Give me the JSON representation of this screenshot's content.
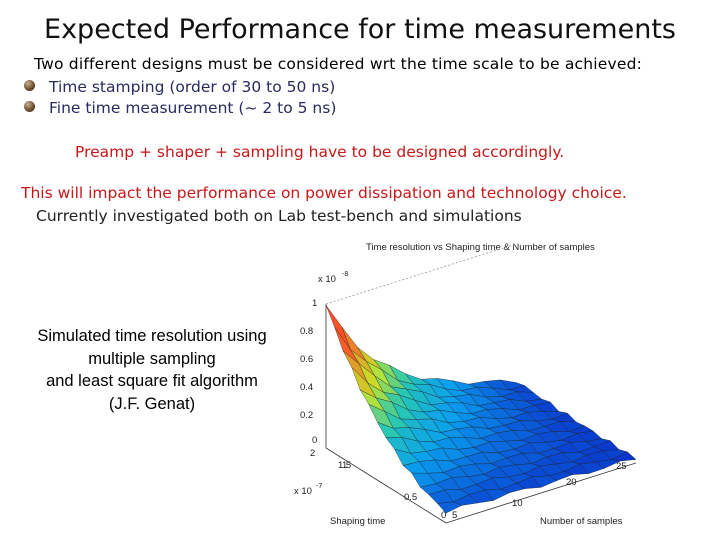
{
  "slide": {
    "title": "Expected Performance for time measurements",
    "intro": "Two different designs must be considered wrt the time scale to be achieved:",
    "bullets": [
      "Time stamping (order of 30 to 50 ns)",
      "Fine time measurement (~ 2 to 5 ns)"
    ],
    "note": "Preamp + shaper + sampling have to be designed accordingly.",
    "impact": "This will impact the performance on power dissipation and technology choice.",
    "currently": "Currently investigated both on Lab test-bench and simulations",
    "sim_caption": [
      "Simulated time resolution using",
      "multiple sampling",
      "and least square fit algorithm",
      "(J.F. Genat)"
    ]
  },
  "plot": {
    "title": "Time resolution vs Shaping time & Number of samples",
    "z_multiplier": "x 10",
    "z_exponent": "-8",
    "z_ticks": [
      "1",
      "0.8",
      "0.6",
      "0.4",
      "0.2",
      "0"
    ],
    "shaping_multiplier": "x 10",
    "shaping_exponent": "-7",
    "shaping_ticks": [
      "2",
      "1.5",
      "1",
      "0.5",
      "0"
    ],
    "shaping_label": "Shaping time",
    "samples_ticks": [
      "5",
      "10",
      "15",
      "20",
      "25"
    ],
    "samples_label": "Number of samples"
  }
}
